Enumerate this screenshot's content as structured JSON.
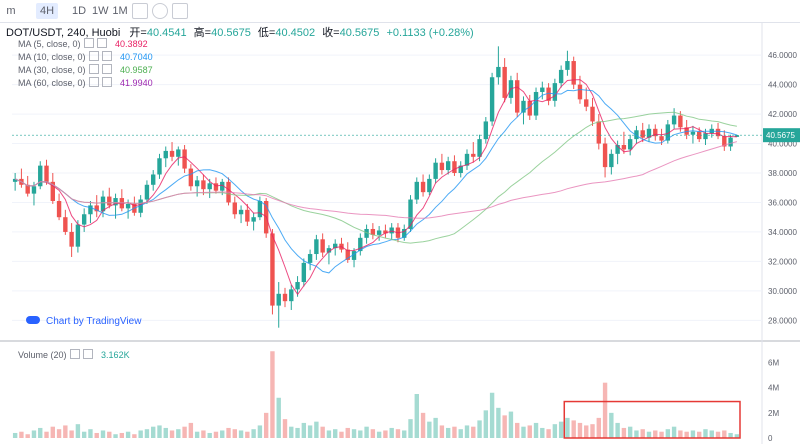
{
  "toolbar": {
    "items": [
      "m",
      "4H",
      "1D",
      "1W",
      "1M"
    ],
    "active": "4H",
    "icons": [
      "compare-icon",
      "settings-icon",
      "fullscreen-icon"
    ]
  },
  "header": {
    "symbol": "DOT/USDT, 240, Huobi",
    "open_label": "开=",
    "open": "40.4541",
    "high_label": "高=",
    "high": "40.5675",
    "low_label": "低=",
    "low": "40.4502",
    "close_label": "收=",
    "close": "40.5675",
    "change": "+0.1133 (+0.28%)"
  },
  "indicators": [
    {
      "label": "MA (5, close, 0)",
      "value": "40.3892",
      "color": "#e91e63"
    },
    {
      "label": "MA (10, close, 0)",
      "value": "40.7040",
      "color": "#2196f3"
    },
    {
      "label": "MA (30, close, 0)",
      "value": "40.9587",
      "color": "#4caf50"
    },
    {
      "label": "MA (60, close, 0)",
      "value": "41.9940",
      "color": "#9c27b0"
    }
  ],
  "volume_legend": {
    "label": "Volume (20)",
    "value": "3.162K"
  },
  "watermark": "Chart by TradingView",
  "colors": {
    "up": "#26a69a",
    "down": "#ef5350",
    "vol_up": "#a5dbd2",
    "vol_down": "#f6b6b4",
    "highlight": "#e53935"
  },
  "chart_data": {
    "type": "candlestick",
    "price_axis": {
      "ticks": [
        "28.0000",
        "30.0000",
        "32.0000",
        "34.0000",
        "36.0000",
        "38.0000",
        "40.0000",
        "42.0000",
        "44.0000",
        "46.0000"
      ],
      "range": [
        26.8,
        47.3
      ]
    },
    "last_price_label": "40.5675",
    "volume_axis": {
      "ticks": [
        "0",
        "2M",
        "4M",
        "6M"
      ],
      "range": [
        0,
        7
      ]
    },
    "candles": [
      {
        "o": 37.4,
        "h": 38.0,
        "l": 36.8,
        "c": 37.6
      },
      {
        "o": 37.6,
        "h": 38.3,
        "l": 37.0,
        "c": 37.2
      },
      {
        "o": 37.2,
        "h": 37.8,
        "l": 36.4,
        "c": 36.6
      },
      {
        "o": 36.6,
        "h": 37.4,
        "l": 35.8,
        "c": 37.1
      },
      {
        "o": 37.1,
        "h": 38.8,
        "l": 36.9,
        "c": 38.5
      },
      {
        "o": 38.5,
        "h": 38.9,
        "l": 37.2,
        "c": 37.4
      },
      {
        "o": 37.4,
        "h": 38.0,
        "l": 35.9,
        "c": 36.1
      },
      {
        "o": 36.1,
        "h": 36.6,
        "l": 34.8,
        "c": 35.0
      },
      {
        "o": 35.0,
        "h": 35.5,
        "l": 33.8,
        "c": 34.0
      },
      {
        "o": 34.0,
        "h": 34.6,
        "l": 32.3,
        "c": 33.0
      },
      {
        "o": 33.0,
        "h": 34.8,
        "l": 32.6,
        "c": 34.5
      },
      {
        "o": 34.5,
        "h": 35.6,
        "l": 34.0,
        "c": 35.2
      },
      {
        "o": 35.2,
        "h": 36.1,
        "l": 34.6,
        "c": 35.8
      },
      {
        "o": 35.8,
        "h": 36.5,
        "l": 35.0,
        "c": 35.4
      },
      {
        "o": 35.4,
        "h": 36.8,
        "l": 35.0,
        "c": 36.4
      },
      {
        "o": 36.4,
        "h": 37.0,
        "l": 35.6,
        "c": 35.8
      },
      {
        "o": 35.8,
        "h": 36.6,
        "l": 34.9,
        "c": 36.3
      },
      {
        "o": 36.3,
        "h": 36.9,
        "l": 35.4,
        "c": 35.6
      },
      {
        "o": 35.6,
        "h": 36.2,
        "l": 34.9,
        "c": 35.9
      },
      {
        "o": 35.9,
        "h": 36.4,
        "l": 35.1,
        "c": 35.3
      },
      {
        "o": 35.3,
        "h": 36.5,
        "l": 35.0,
        "c": 36.2
      },
      {
        "o": 36.2,
        "h": 37.5,
        "l": 35.9,
        "c": 37.2
      },
      {
        "o": 37.2,
        "h": 38.2,
        "l": 36.8,
        "c": 37.9
      },
      {
        "o": 37.9,
        "h": 39.3,
        "l": 37.6,
        "c": 39.0
      },
      {
        "o": 39.0,
        "h": 39.8,
        "l": 38.4,
        "c": 39.5
      },
      {
        "o": 39.5,
        "h": 40.1,
        "l": 38.8,
        "c": 39.1
      },
      {
        "o": 39.1,
        "h": 39.8,
        "l": 38.5,
        "c": 39.6
      },
      {
        "o": 39.6,
        "h": 39.9,
        "l": 38.0,
        "c": 38.3
      },
      {
        "o": 38.3,
        "h": 38.6,
        "l": 36.8,
        "c": 37.1
      },
      {
        "o": 37.1,
        "h": 37.8,
        "l": 36.4,
        "c": 37.5
      },
      {
        "o": 37.5,
        "h": 37.9,
        "l": 36.5,
        "c": 36.9
      },
      {
        "o": 36.9,
        "h": 37.6,
        "l": 36.3,
        "c": 37.3
      },
      {
        "o": 37.3,
        "h": 37.7,
        "l": 36.6,
        "c": 36.8
      },
      {
        "o": 36.8,
        "h": 37.6,
        "l": 36.5,
        "c": 37.4
      },
      {
        "o": 37.4,
        "h": 37.7,
        "l": 35.8,
        "c": 36.0
      },
      {
        "o": 36.0,
        "h": 36.4,
        "l": 34.9,
        "c": 35.2
      },
      {
        "o": 35.2,
        "h": 35.8,
        "l": 34.6,
        "c": 35.5
      },
      {
        "o": 35.5,
        "h": 35.9,
        "l": 34.4,
        "c": 34.7
      },
      {
        "o": 34.7,
        "h": 35.3,
        "l": 34.1,
        "c": 35.0
      },
      {
        "o": 35.0,
        "h": 36.4,
        "l": 34.8,
        "c": 36.1
      },
      {
        "o": 36.1,
        "h": 36.3,
        "l": 33.6,
        "c": 33.9
      },
      {
        "o": 33.9,
        "h": 34.2,
        "l": 28.4,
        "c": 29.0
      },
      {
        "o": 29.0,
        "h": 30.6,
        "l": 27.5,
        "c": 29.8
      },
      {
        "o": 29.8,
        "h": 30.2,
        "l": 28.9,
        "c": 29.3
      },
      {
        "o": 29.3,
        "h": 30.4,
        "l": 28.7,
        "c": 30.1
      },
      {
        "o": 30.1,
        "h": 31.0,
        "l": 29.6,
        "c": 30.6
      },
      {
        "o": 30.6,
        "h": 32.2,
        "l": 30.3,
        "c": 31.9
      },
      {
        "o": 31.9,
        "h": 32.8,
        "l": 31.4,
        "c": 32.5
      },
      {
        "o": 32.5,
        "h": 33.8,
        "l": 32.1,
        "c": 33.5
      },
      {
        "o": 33.5,
        "h": 33.9,
        "l": 32.3,
        "c": 32.6
      },
      {
        "o": 32.6,
        "h": 33.1,
        "l": 31.8,
        "c": 32.9
      },
      {
        "o": 32.9,
        "h": 33.5,
        "l": 32.4,
        "c": 33.2
      },
      {
        "o": 33.2,
        "h": 33.6,
        "l": 32.6,
        "c": 32.8
      },
      {
        "o": 32.8,
        "h": 33.3,
        "l": 31.9,
        "c": 32.1
      },
      {
        "o": 32.1,
        "h": 32.9,
        "l": 31.6,
        "c": 32.7
      },
      {
        "o": 32.7,
        "h": 33.9,
        "l": 32.4,
        "c": 33.6
      },
      {
        "o": 33.6,
        "h": 34.5,
        "l": 33.2,
        "c": 34.2
      },
      {
        "o": 34.2,
        "h": 34.6,
        "l": 33.5,
        "c": 33.8
      },
      {
        "o": 33.8,
        "h": 34.4,
        "l": 33.4,
        "c": 34.1
      },
      {
        "o": 34.1,
        "h": 34.5,
        "l": 33.6,
        "c": 33.9
      },
      {
        "o": 33.9,
        "h": 34.6,
        "l": 33.5,
        "c": 34.3
      },
      {
        "o": 34.3,
        "h": 34.6,
        "l": 33.3,
        "c": 33.6
      },
      {
        "o": 33.6,
        "h": 34.5,
        "l": 33.4,
        "c": 34.2
      },
      {
        "o": 34.2,
        "h": 36.5,
        "l": 34.0,
        "c": 36.2
      },
      {
        "o": 36.2,
        "h": 37.7,
        "l": 35.9,
        "c": 37.4
      },
      {
        "o": 37.4,
        "h": 37.9,
        "l": 36.4,
        "c": 36.7
      },
      {
        "o": 36.7,
        "h": 37.9,
        "l": 36.5,
        "c": 37.6
      },
      {
        "o": 37.6,
        "h": 39.0,
        "l": 37.3,
        "c": 38.7
      },
      {
        "o": 38.7,
        "h": 39.3,
        "l": 37.9,
        "c": 38.2
      },
      {
        "o": 38.2,
        "h": 39.1,
        "l": 37.9,
        "c": 38.8
      },
      {
        "o": 38.8,
        "h": 39.2,
        "l": 37.8,
        "c": 38.0
      },
      {
        "o": 38.0,
        "h": 38.8,
        "l": 37.7,
        "c": 38.5
      },
      {
        "o": 38.5,
        "h": 39.6,
        "l": 38.2,
        "c": 39.3
      },
      {
        "o": 39.3,
        "h": 40.1,
        "l": 38.7,
        "c": 39.1
      },
      {
        "o": 39.1,
        "h": 40.6,
        "l": 38.8,
        "c": 40.3
      },
      {
        "o": 40.3,
        "h": 41.8,
        "l": 40.0,
        "c": 41.5
      },
      {
        "o": 41.5,
        "h": 44.8,
        "l": 41.2,
        "c": 44.5
      },
      {
        "o": 44.5,
        "h": 46.6,
        "l": 44.0,
        "c": 45.2
      },
      {
        "o": 45.2,
        "h": 45.8,
        "l": 42.8,
        "c": 43.1
      },
      {
        "o": 43.1,
        "h": 44.6,
        "l": 42.7,
        "c": 44.3
      },
      {
        "o": 44.3,
        "h": 44.8,
        "l": 41.8,
        "c": 42.1
      },
      {
        "o": 42.1,
        "h": 43.2,
        "l": 41.3,
        "c": 42.9
      },
      {
        "o": 42.9,
        "h": 43.3,
        "l": 41.6,
        "c": 41.9
      },
      {
        "o": 41.9,
        "h": 43.8,
        "l": 41.6,
        "c": 43.5
      },
      {
        "o": 43.5,
        "h": 44.2,
        "l": 43.0,
        "c": 43.8
      },
      {
        "o": 43.8,
        "h": 44.1,
        "l": 42.6,
        "c": 42.9
      },
      {
        "o": 42.9,
        "h": 44.4,
        "l": 42.5,
        "c": 44.1
      },
      {
        "o": 44.1,
        "h": 45.3,
        "l": 43.8,
        "c": 45.0
      },
      {
        "o": 45.0,
        "h": 46.3,
        "l": 44.6,
        "c": 45.6
      },
      {
        "o": 45.6,
        "h": 45.9,
        "l": 43.7,
        "c": 44.0
      },
      {
        "o": 44.0,
        "h": 44.6,
        "l": 42.7,
        "c": 43.0
      },
      {
        "o": 43.0,
        "h": 43.8,
        "l": 42.2,
        "c": 42.5
      },
      {
        "o": 42.5,
        "h": 43.1,
        "l": 41.2,
        "c": 41.5
      },
      {
        "o": 41.5,
        "h": 42.0,
        "l": 39.6,
        "c": 40.0
      },
      {
        "o": 40.0,
        "h": 40.4,
        "l": 37.7,
        "c": 38.4
      },
      {
        "o": 38.4,
        "h": 39.6,
        "l": 37.9,
        "c": 39.3
      },
      {
        "o": 39.3,
        "h": 40.2,
        "l": 38.6,
        "c": 39.9
      },
      {
        "o": 39.9,
        "h": 40.8,
        "l": 39.3,
        "c": 39.6
      },
      {
        "o": 39.6,
        "h": 40.6,
        "l": 39.2,
        "c": 40.3
      },
      {
        "o": 40.3,
        "h": 41.2,
        "l": 40.0,
        "c": 40.9
      },
      {
        "o": 40.9,
        "h": 41.4,
        "l": 40.1,
        "c": 40.4
      },
      {
        "o": 40.4,
        "h": 41.3,
        "l": 40.1,
        "c": 41.0
      },
      {
        "o": 41.0,
        "h": 41.3,
        "l": 40.2,
        "c": 40.5
      },
      {
        "o": 40.5,
        "h": 41.0,
        "l": 39.9,
        "c": 40.2
      },
      {
        "o": 40.2,
        "h": 41.6,
        "l": 40.0,
        "c": 41.3
      },
      {
        "o": 41.3,
        "h": 42.4,
        "l": 41.0,
        "c": 41.9
      },
      {
        "o": 41.9,
        "h": 42.2,
        "l": 40.8,
        "c": 41.1
      },
      {
        "o": 41.1,
        "h": 41.6,
        "l": 40.3,
        "c": 40.6
      },
      {
        "o": 40.6,
        "h": 41.2,
        "l": 40.0,
        "c": 40.8
      },
      {
        "o": 40.8,
        "h": 41.1,
        "l": 40.1,
        "c": 40.3
      },
      {
        "o": 40.3,
        "h": 41.0,
        "l": 39.9,
        "c": 40.7
      },
      {
        "o": 40.7,
        "h": 41.3,
        "l": 40.4,
        "c": 41.0
      },
      {
        "o": 41.0,
        "h": 41.4,
        "l": 40.3,
        "c": 40.5
      },
      {
        "o": 40.5,
        "h": 40.9,
        "l": 39.5,
        "c": 39.8
      },
      {
        "o": 39.8,
        "h": 40.6,
        "l": 39.5,
        "c": 40.4
      },
      {
        "o": 40.4541,
        "h": 40.5675,
        "l": 40.4502,
        "c": 40.5675
      }
    ],
    "volumes": [
      0.4,
      0.5,
      0.3,
      0.6,
      0.8,
      0.5,
      0.9,
      0.7,
      1.0,
      0.6,
      1.1,
      0.5,
      0.7,
      0.4,
      0.6,
      0.5,
      0.3,
      0.4,
      0.5,
      0.3,
      0.6,
      0.7,
      0.9,
      1.0,
      0.8,
      0.6,
      0.7,
      0.9,
      1.2,
      0.5,
      0.6,
      0.4,
      0.5,
      0.6,
      0.8,
      0.7,
      0.6,
      0.5,
      0.7,
      1.0,
      2.0,
      6.9,
      3.2,
      1.5,
      0.9,
      0.8,
      1.2,
      1.0,
      1.3,
      0.9,
      0.6,
      0.7,
      0.5,
      0.8,
      0.7,
      0.6,
      0.9,
      0.7,
      0.5,
      0.6,
      0.8,
      0.7,
      0.6,
      1.5,
      3.5,
      2.0,
      1.3,
      1.6,
      1.0,
      0.8,
      0.9,
      0.7,
      1.0,
      0.9,
      1.4,
      2.2,
      3.6,
      2.4,
      1.8,
      2.1,
      1.2,
      0.9,
      1.0,
      1.2,
      0.8,
      0.7,
      1.1,
      1.3,
      1.6,
      1.4,
      1.2,
      1.0,
      1.1,
      1.6,
      4.4,
      2.0,
      1.2,
      0.8,
      0.9,
      0.6,
      0.7,
      0.5,
      0.6,
      0.5,
      0.7,
      0.9,
      0.6,
      0.5,
      0.6,
      0.5,
      0.7,
      0.6,
      0.5,
      0.6,
      0.4,
      0.3
    ],
    "ma5": [],
    "highlight_box": {
      "from_index": 88,
      "to_index": 115,
      "vol_top": 2.9
    }
  }
}
